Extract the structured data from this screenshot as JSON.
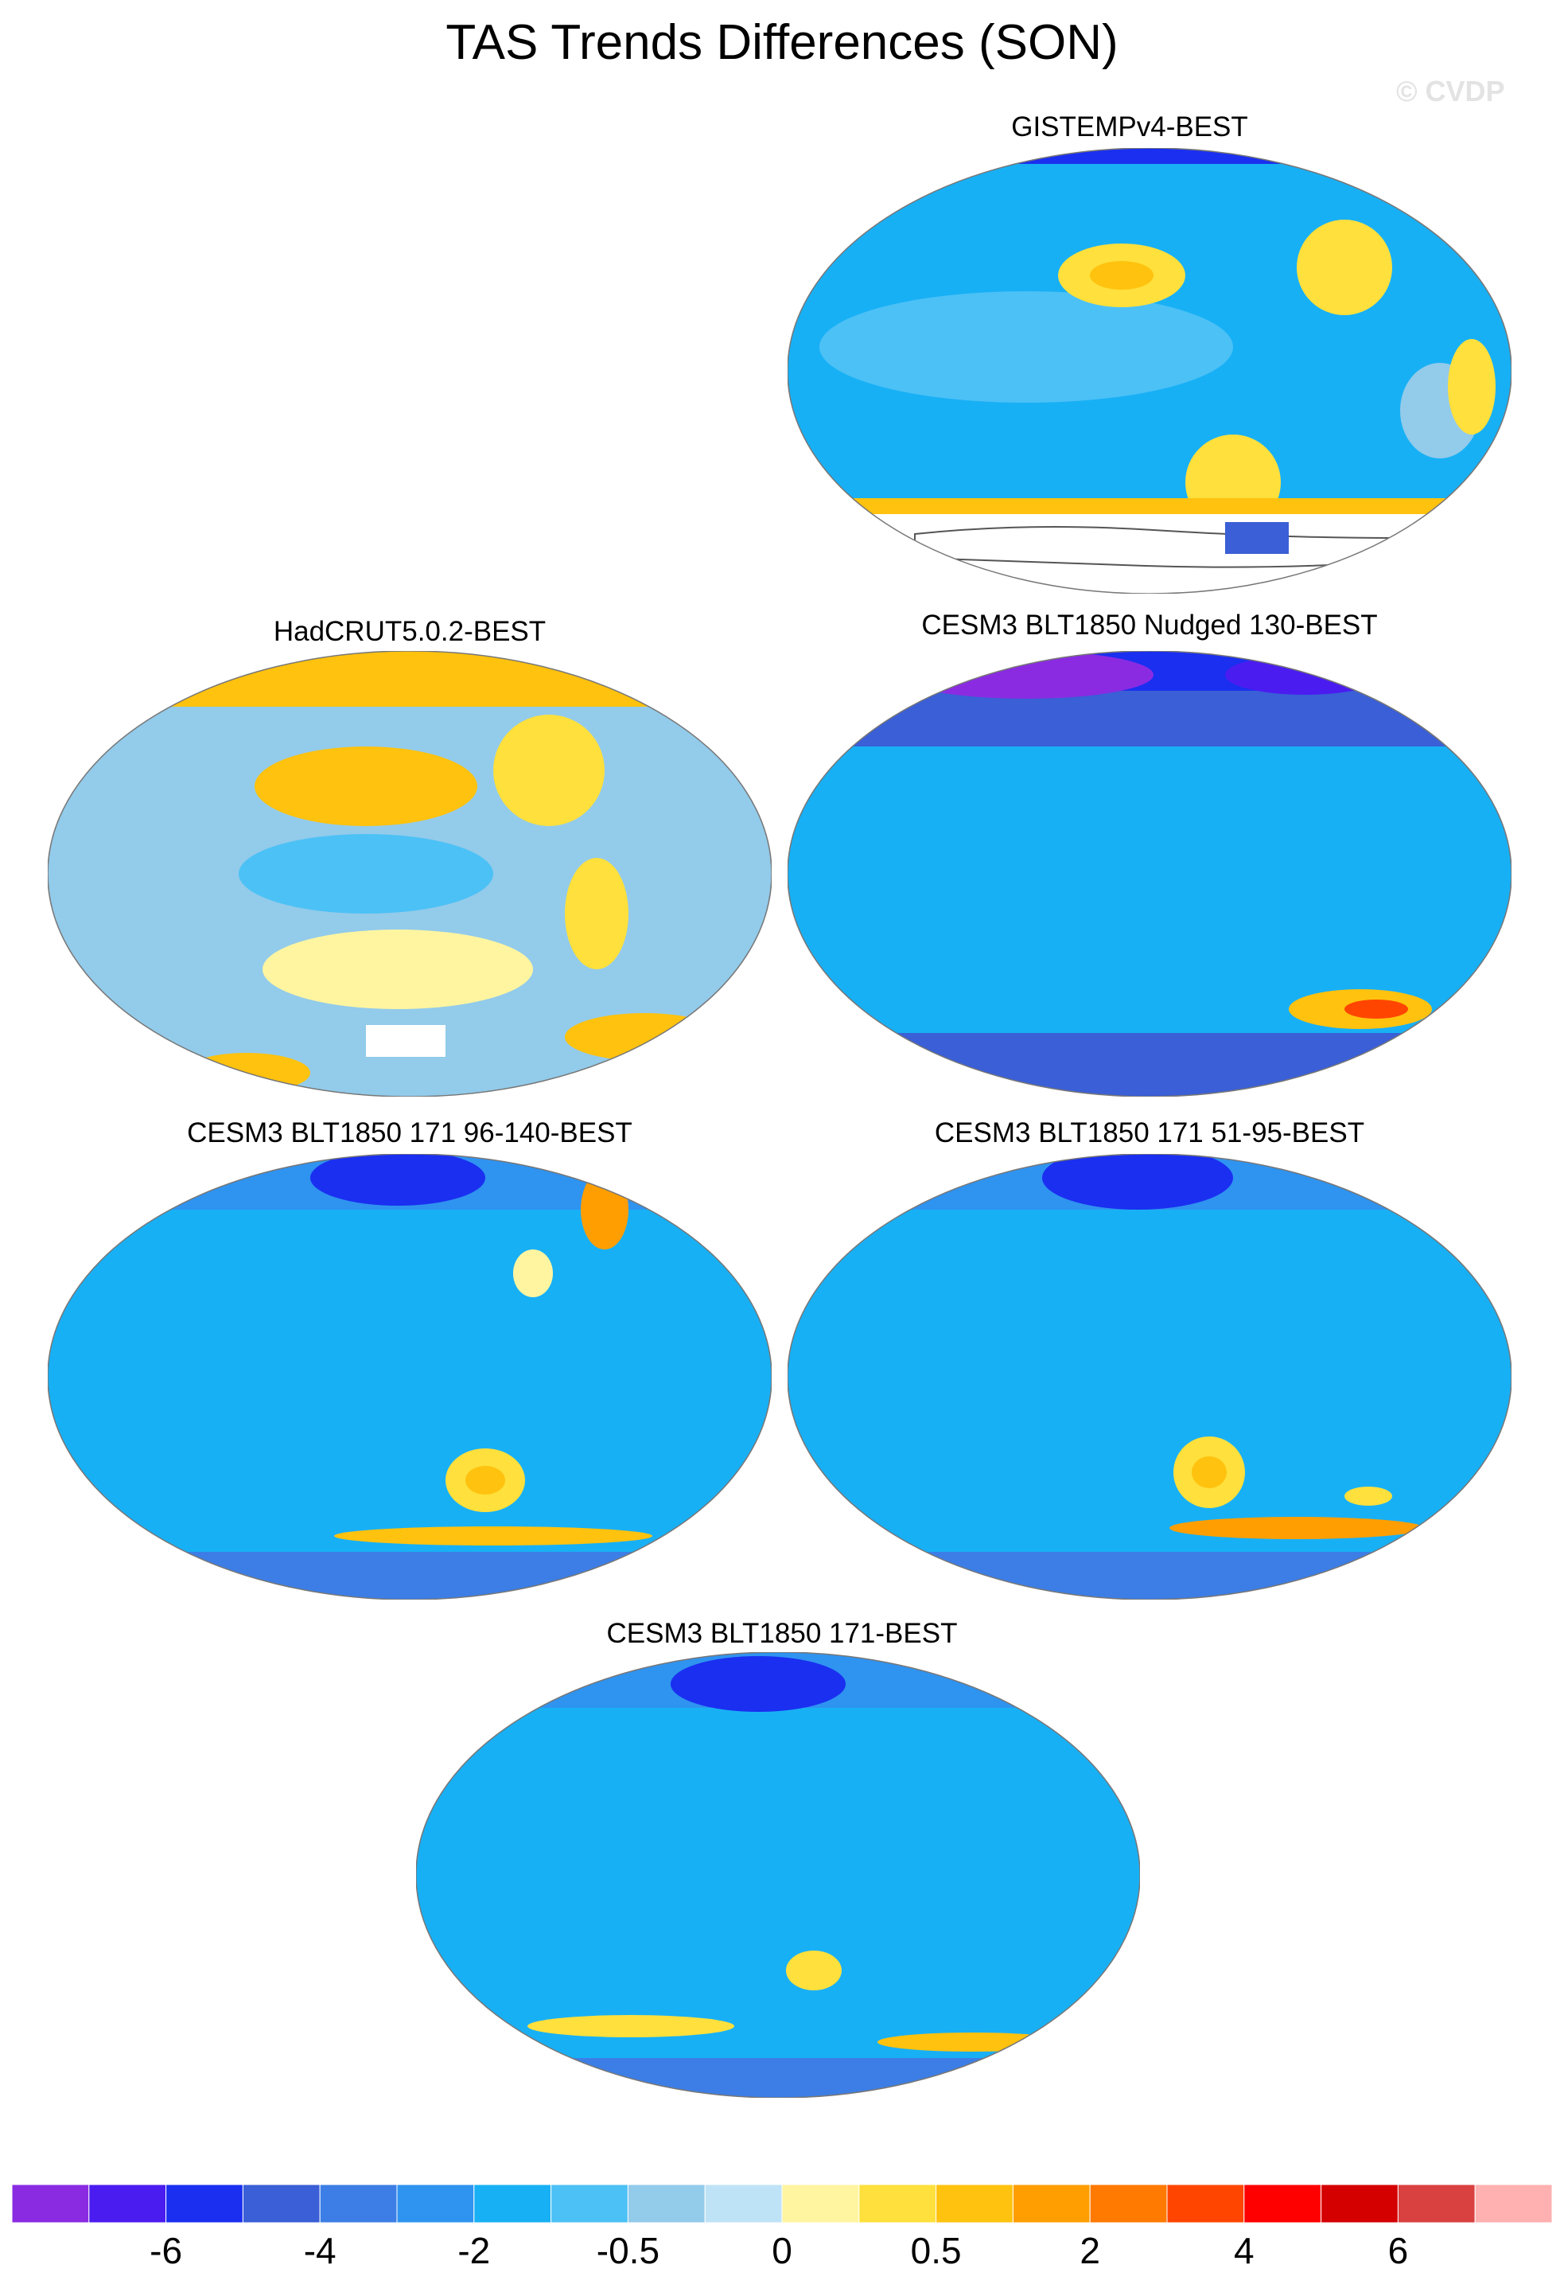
{
  "title": "TAS Trends Differences (SON)",
  "watermark": "© CVDP",
  "panels": [
    {
      "id": "gistemp",
      "title": "GISTEMPv4-BEST"
    },
    {
      "id": "hadcrut",
      "title": "HadCRUT5.0.2-BEST"
    },
    {
      "id": "nudged",
      "title": "CESM3 BLT1850 Nudged 130-BEST"
    },
    {
      "id": "e96",
      "title": "CESM3 BLT1850 171 96-140-BEST"
    },
    {
      "id": "e51",
      "title": "CESM3 BLT1850 171 51-95-BEST"
    },
    {
      "id": "e171",
      "title": "CESM3 BLT1850 171-BEST"
    }
  ],
  "colorbar": {
    "colors": [
      "#8a2be2",
      "#4b1cf0",
      "#1a2ff0",
      "#3a5fd6",
      "#3c7ee6",
      "#2f93f0",
      "#18b0f5",
      "#4cc1f6",
      "#93cbea",
      "#bfe3f6",
      "#fff5a0",
      "#ffe03c",
      "#ffc20e",
      "#ff9e00",
      "#ff7a00",
      "#ff4500",
      "#ff0000",
      "#d40000",
      "#d94040",
      "#ffb0b0"
    ],
    "labels": [
      "-6",
      "-4",
      "-2",
      "-0.5",
      "0",
      "0.5",
      "2",
      "4",
      "6"
    ]
  }
}
